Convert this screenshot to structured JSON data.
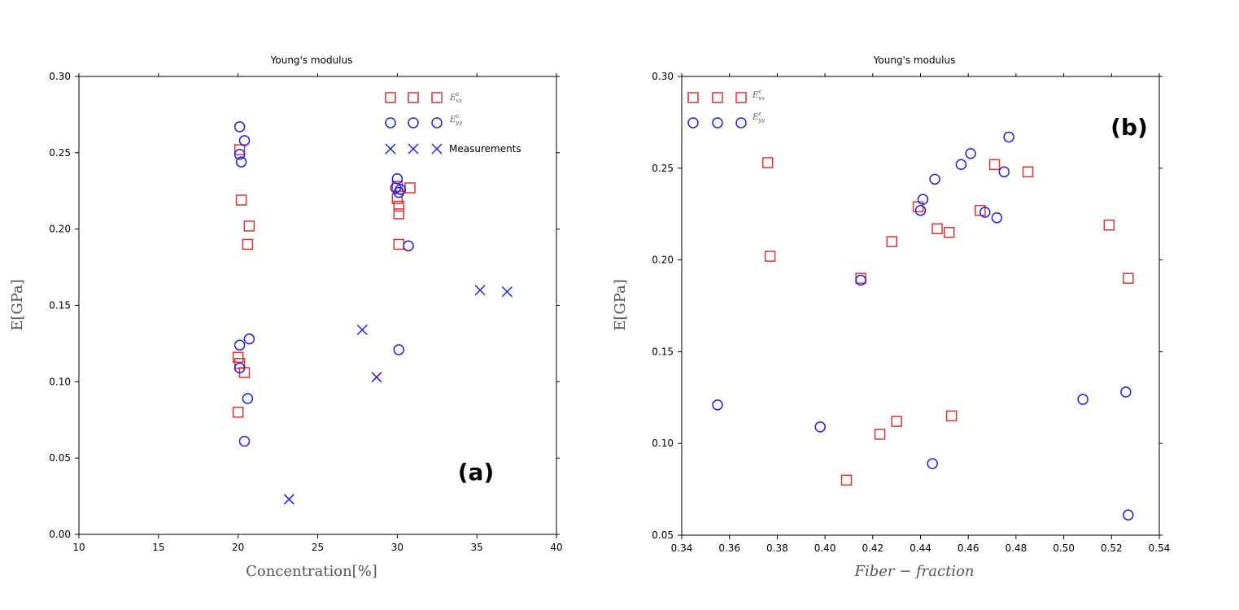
{
  "colors": {
    "red": "#e03030",
    "blue": "#2020e0",
    "axis": "#000000"
  },
  "chart_data": [
    {
      "type": "scatter",
      "title": "Young's modulus",
      "xlabel": "Concentration[%]",
      "ylabel": "E[GPa]",
      "panel_label": "(a)",
      "xlim": [
        10,
        40
      ],
      "ylim": [
        0,
        0.3
      ],
      "xticks": [
        10,
        15,
        20,
        25,
        30,
        35,
        40
      ],
      "xtick_labels": [
        "10",
        "15",
        "20",
        "25",
        "30",
        "35",
        "40"
      ],
      "yticks": [
        0,
        0.05,
        0.1,
        0.15,
        0.2,
        0.25,
        0.3
      ],
      "ytick_labels": [
        "0.00",
        "0.05",
        "0.10",
        "0.15",
        "0.20",
        "0.25",
        "0.30"
      ],
      "legend_placement": "top-right",
      "series": [
        {
          "name": "E^c_xx",
          "legend_text": "E",
          "legend_sub": "xx",
          "legend_sup": "c",
          "marker": "square",
          "color": "#e03030",
          "x": [
            20.1,
            20.2,
            20.6,
            20.7,
            20.0,
            20.1,
            20.4,
            20.0,
            30.0,
            30.1,
            30.1,
            30.8,
            30.1,
            30.0
          ],
          "y": [
            0.252,
            0.219,
            0.19,
            0.202,
            0.116,
            0.112,
            0.106,
            0.08,
            0.228,
            0.215,
            0.21,
            0.227,
            0.19,
            0.22
          ]
        },
        {
          "name": "E^c_yy",
          "legend_text": "E",
          "legend_sub": "yy",
          "legend_sup": "c",
          "marker": "circle",
          "color": "#2020e0",
          "x": [
            20.1,
            20.4,
            20.1,
            20.2,
            20.1,
            20.7,
            20.1,
            20.6,
            20.4,
            30.0,
            29.9,
            30.1,
            30.2,
            30.7,
            30.1
          ],
          "y": [
            0.267,
            0.258,
            0.249,
            0.244,
            0.124,
            0.128,
            0.109,
            0.089,
            0.061,
            0.233,
            0.227,
            0.224,
            0.226,
            0.189,
            0.121
          ]
        },
        {
          "name": "Measurements",
          "legend_text": "Measurements",
          "marker": "x",
          "color": "#2020e0",
          "x": [
            23.2,
            27.8,
            28.7,
            35.2,
            36.9
          ],
          "y": [
            0.023,
            0.134,
            0.103,
            0.16,
            0.159
          ]
        }
      ]
    },
    {
      "type": "scatter",
      "title": "Young's modulus",
      "xlabel": "Fiber − fraction",
      "ylabel": "E[GPa]",
      "panel_label": "(b)",
      "xlim": [
        0.34,
        0.54
      ],
      "ylim": [
        0.05,
        0.3
      ],
      "xticks": [
        0.34,
        0.36,
        0.38,
        0.4,
        0.42,
        0.44,
        0.46,
        0.48,
        0.5,
        0.52,
        0.54
      ],
      "xtick_labels": [
        "0.34",
        "0.36",
        "0.38",
        "0.40",
        "0.42",
        "0.44",
        "0.46",
        "0.48",
        "0.50",
        "0.52",
        "0.54"
      ],
      "yticks": [
        0.05,
        0.1,
        0.15,
        0.2,
        0.25,
        0.3
      ],
      "ytick_labels": [
        "0.05",
        "0.10",
        "0.15",
        "0.20",
        "0.25",
        "0.30"
      ],
      "legend_placement": "top-left",
      "series": [
        {
          "name": "E^c_xx",
          "legend_text": "E",
          "legend_sub": "xx",
          "legend_sup": "c",
          "marker": "square",
          "color": "#e03030",
          "x": [
            0.376,
            0.377,
            0.409,
            0.415,
            0.423,
            0.428,
            0.43,
            0.439,
            0.447,
            0.452,
            0.453,
            0.465,
            0.471,
            0.485,
            0.519,
            0.527
          ],
          "y": [
            0.253,
            0.202,
            0.08,
            0.19,
            0.105,
            0.21,
            0.112,
            0.229,
            0.217,
            0.215,
            0.115,
            0.227,
            0.252,
            0.248,
            0.219,
            0.19
          ]
        },
        {
          "name": "E^c_yy",
          "legend_text": "E",
          "legend_sub": "yy",
          "legend_sup": "c",
          "marker": "circle",
          "color": "#2020e0",
          "x": [
            0.355,
            0.398,
            0.415,
            0.44,
            0.441,
            0.445,
            0.446,
            0.457,
            0.461,
            0.467,
            0.472,
            0.475,
            0.477,
            0.508,
            0.526,
            0.527
          ],
          "y": [
            0.121,
            0.109,
            0.189,
            0.227,
            0.233,
            0.089,
            0.244,
            0.252,
            0.258,
            0.226,
            0.223,
            0.248,
            0.267,
            0.124,
            0.128,
            0.061
          ]
        }
      ]
    }
  ]
}
